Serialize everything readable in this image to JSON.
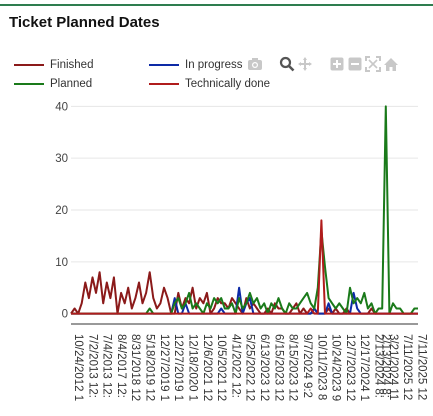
{
  "page": {
    "title": "Ticket Planned Dates"
  },
  "toolbar": [
    {
      "name": "camera-icon"
    },
    {
      "name": "zoom-icon"
    },
    {
      "name": "pan-icon"
    },
    {
      "name": "zoom-in-icon"
    },
    {
      "name": "zoom-out-icon"
    },
    {
      "name": "autoscale-icon"
    },
    {
      "name": "home-icon"
    }
  ],
  "chart_data": {
    "type": "line",
    "title": "Ticket Planned Dates",
    "xlabel": "",
    "ylabel": "",
    "ylim": [
      -2,
      42
    ],
    "yticks": [
      0,
      10,
      20,
      30,
      40
    ],
    "grid": true,
    "legend_position": "top",
    "x_tick_labels": [
      "10/24/2012 1",
      "7/2/2013 12:",
      "7/4/2013 12:",
      "8/4/2017 12:",
      "8/31/2018 12",
      "5/18/2019 12",
      "12/27/2019 1",
      "12/27/2019 1",
      "12/18/2020 1",
      "12/6/2021 12",
      "10/5/2021 12",
      "4/1/2022 12:",
      "5/25/2022 12",
      "6/13/2023 12",
      "6/15/2023 12",
      "8/15/2023 12",
      "9/7/2024 9:2",
      "10/11/2023 8",
      "10/24/2023 9",
      "12/7/2023 12",
      "12/17/2024 1",
      "2/13/2024 8:",
      "2/13/2024 8:",
      "3/21/2024 11",
      "7/11/2025 12",
      "7/11/2025 12"
    ],
    "tick_positions": [
      0,
      4,
      8,
      12,
      16,
      20,
      24,
      28,
      32,
      36,
      40,
      44,
      48,
      52,
      56,
      60,
      64,
      68,
      72,
      76,
      80,
      84,
      86,
      88,
      92,
      96
    ],
    "n_points": 98,
    "series": [
      {
        "name": "Finished",
        "color": "#8b1a1a",
        "values": [
          0,
          1,
          0,
          2,
          6,
          3,
          7,
          4,
          8,
          2,
          6,
          3,
          7,
          0,
          4,
          2,
          5,
          1,
          3,
          6,
          2,
          4,
          8,
          3,
          1,
          2,
          5,
          3,
          0,
          0,
          4,
          1,
          3,
          2,
          5,
          1,
          3,
          2,
          4,
          0,
          1,
          3,
          2,
          2,
          1,
          3,
          2,
          1,
          0,
          3,
          1,
          2,
          1,
          0,
          0,
          1,
          0,
          2,
          1,
          1,
          0,
          0,
          1,
          2,
          0,
          1,
          0,
          0,
          1,
          0,
          0,
          0,
          1,
          0,
          1,
          0,
          0,
          1,
          0,
          0,
          0,
          0,
          0,
          0,
          1,
          0,
          0,
          0,
          0,
          0,
          0,
          0,
          0,
          0,
          0,
          0,
          0,
          0
        ]
      },
      {
        "name": "In progress",
        "color": "#0d2aa6",
        "values": [
          0,
          0,
          0,
          0,
          0,
          0,
          0,
          0,
          0,
          0,
          0,
          0,
          0,
          0,
          0,
          0,
          0,
          0,
          0,
          0,
          0,
          0,
          0,
          0,
          0,
          0,
          0,
          0,
          0,
          3,
          0,
          0,
          2,
          0,
          0,
          0,
          0,
          0,
          0,
          0,
          0,
          0,
          1,
          0,
          0,
          0,
          0,
          5,
          0,
          2,
          3,
          0,
          0,
          0,
          0,
          0,
          0,
          0,
          0,
          0,
          0,
          0,
          0,
          0,
          0,
          0,
          0,
          0,
          1,
          0,
          0,
          0,
          2,
          0,
          0,
          0,
          0,
          0,
          0,
          4,
          1,
          0,
          0,
          0,
          0,
          0,
          0,
          0,
          0,
          0,
          0,
          0,
          0,
          0,
          0,
          0,
          0,
          0
        ]
      },
      {
        "name": "Planned",
        "color": "#1a7a1a",
        "values": [
          0,
          0,
          0,
          0,
          0,
          0,
          0,
          0,
          0,
          0,
          0,
          0,
          0,
          0,
          0,
          0,
          0,
          0,
          0,
          0,
          0,
          0,
          1,
          0,
          0,
          0,
          0,
          0,
          0,
          2,
          3,
          1,
          2,
          4,
          1,
          2,
          1,
          0,
          2,
          1,
          3,
          2,
          3,
          1,
          1,
          2,
          0,
          3,
          1,
          2,
          4,
          2,
          3,
          1,
          2,
          0,
          2,
          1,
          3,
          1,
          0,
          2,
          1,
          1,
          2,
          3,
          4,
          2,
          1,
          5,
          16,
          9,
          3,
          2,
          1,
          2,
          1,
          0,
          5,
          2,
          3,
          2,
          4,
          1,
          2,
          0,
          1,
          1,
          40,
          0,
          2,
          1,
          1,
          0,
          0,
          0,
          1,
          1
        ]
      },
      {
        "name": "Technically done",
        "color": "#b01c1c",
        "values": [
          0,
          0,
          0,
          0,
          0,
          0,
          0,
          0,
          0,
          0,
          0,
          0,
          0,
          0,
          0,
          0,
          0,
          0,
          0,
          0,
          0,
          0,
          0,
          0,
          0,
          0,
          0,
          0,
          0,
          0,
          0,
          0,
          0,
          0,
          0,
          0,
          0,
          0,
          0,
          0,
          0,
          0,
          0,
          0,
          0,
          0,
          0,
          0,
          0,
          0,
          0,
          0,
          0,
          0,
          0,
          0,
          0,
          0,
          0,
          0,
          0,
          0,
          0,
          0,
          0,
          0,
          0,
          1,
          0,
          0,
          18,
          0,
          0,
          0,
          0,
          0,
          0,
          0,
          0,
          0,
          0,
          0,
          0,
          0,
          0,
          0,
          0,
          0,
          0,
          0,
          0,
          0,
          0,
          0,
          0,
          0,
          0,
          0
        ]
      }
    ]
  }
}
